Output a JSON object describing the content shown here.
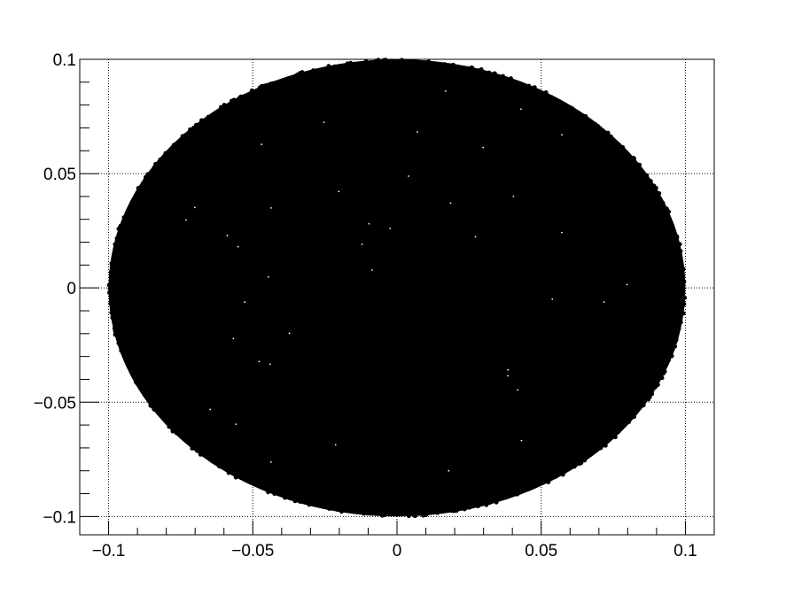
{
  "chart_data": {
    "type": "scatter",
    "title": "",
    "xlabel": "",
    "ylabel": "",
    "xlim": [
      -0.11,
      0.11
    ],
    "ylim": [
      -0.108,
      0.1
    ],
    "grid": true,
    "x_ticks": [
      {
        "value": -0.1,
        "label": "−0.1"
      },
      {
        "value": -0.05,
        "label": "−0.05"
      },
      {
        "value": 0,
        "label": "0"
      },
      {
        "value": 0.05,
        "label": "0.05"
      },
      {
        "value": 0.1,
        "label": "0.1"
      }
    ],
    "y_ticks": [
      {
        "value": 0.1,
        "label": "0.1"
      },
      {
        "value": 0.05,
        "label": "0.05"
      },
      {
        "value": 0,
        "label": "0"
      },
      {
        "value": -0.05,
        "label": "−0.05"
      },
      {
        "value": -0.1,
        "label": "−0.1"
      }
    ],
    "series": [
      {
        "marker_color": "#000000",
        "distribution": "points uniformly filling the disk x^2 + y^2 <= 0.1^2",
        "center": [
          0,
          0
        ],
        "radius": 0.1
      }
    ]
  }
}
